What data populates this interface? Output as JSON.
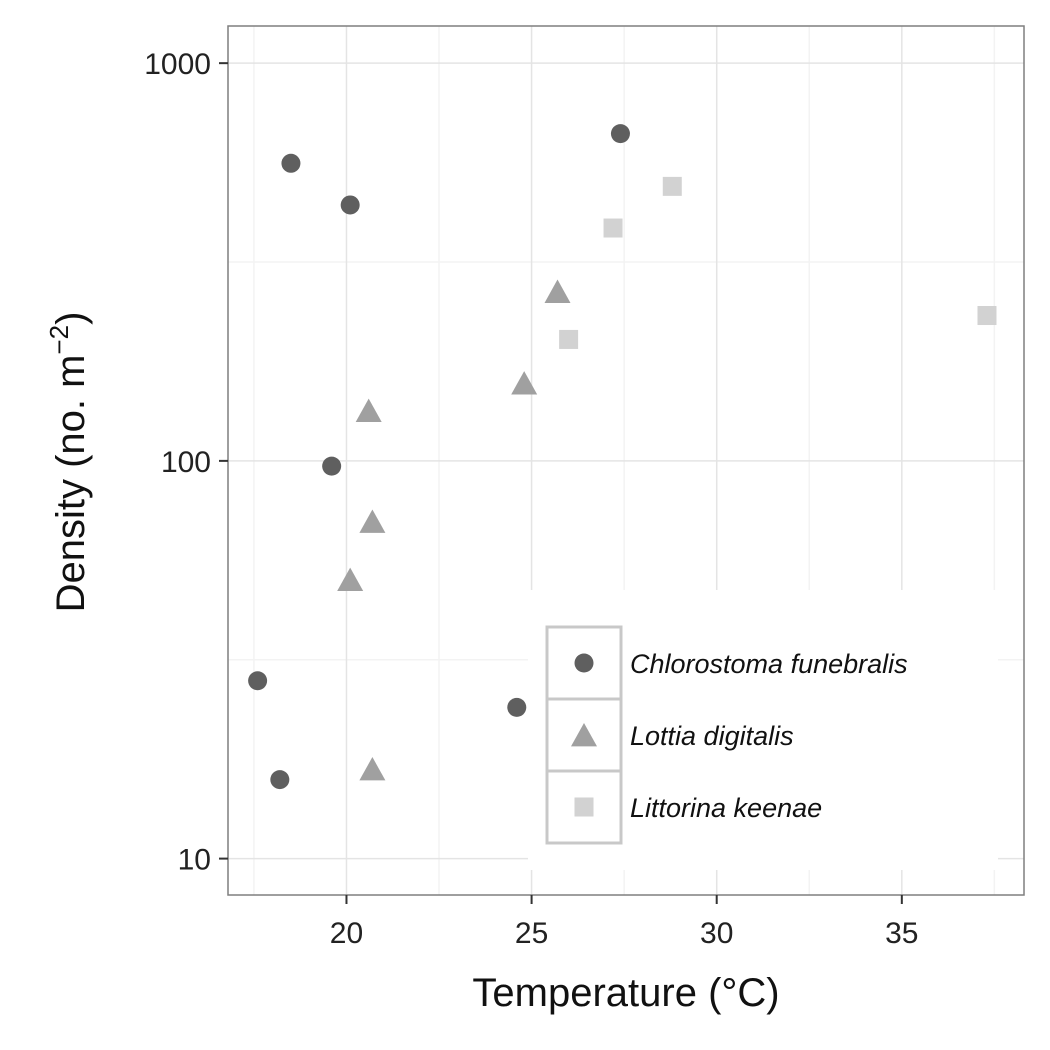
{
  "chart_data": {
    "type": "scatter",
    "title": "",
    "xlabel": "Temperature (°C)",
    "ylabel": {
      "prefix": "Density (no. m",
      "superscript": "−2",
      "suffix": ")"
    },
    "xlim": [
      16.8,
      38.3
    ],
    "ylim": [
      8.1,
      1240
    ],
    "yscale": "log10",
    "grid": true,
    "legend_position": "bottom-right inside plot",
    "x_ticks": [
      20,
      25,
      30,
      35
    ],
    "x_tick_labels": [
      "20",
      "25",
      "30",
      "35"
    ],
    "y_ticks": [
      10,
      100,
      1000
    ],
    "y_tick_labels": [
      "10",
      "100",
      "1000"
    ],
    "series": [
      {
        "name": "Chlorostoma funebralis",
        "marker": "circle",
        "color": "#5f5f5f",
        "points": [
          {
            "x": 18.5,
            "y": 560
          },
          {
            "x": 20.1,
            "y": 440
          },
          {
            "x": 27.4,
            "y": 665
          },
          {
            "x": 19.6,
            "y": 97
          },
          {
            "x": 17.6,
            "y": 28
          },
          {
            "x": 18.2,
            "y": 15.8
          },
          {
            "x": 24.6,
            "y": 24
          }
        ]
      },
      {
        "name": "Lottia digitalis",
        "marker": "triangle",
        "color": "#a0a0a0",
        "points": [
          {
            "x": 25.7,
            "y": 265
          },
          {
            "x": 24.8,
            "y": 156
          },
          {
            "x": 20.6,
            "y": 133
          },
          {
            "x": 20.7,
            "y": 70
          },
          {
            "x": 20.1,
            "y": 50
          },
          {
            "x": 20.7,
            "y": 16.7
          }
        ]
      },
      {
        "name": "Littorina keenae",
        "marker": "square",
        "color": "#d2d2d2",
        "points": [
          {
            "x": 28.8,
            "y": 490
          },
          {
            "x": 27.2,
            "y": 385
          },
          {
            "x": 26.0,
            "y": 202
          },
          {
            "x": 37.3,
            "y": 232
          }
        ]
      }
    ]
  }
}
